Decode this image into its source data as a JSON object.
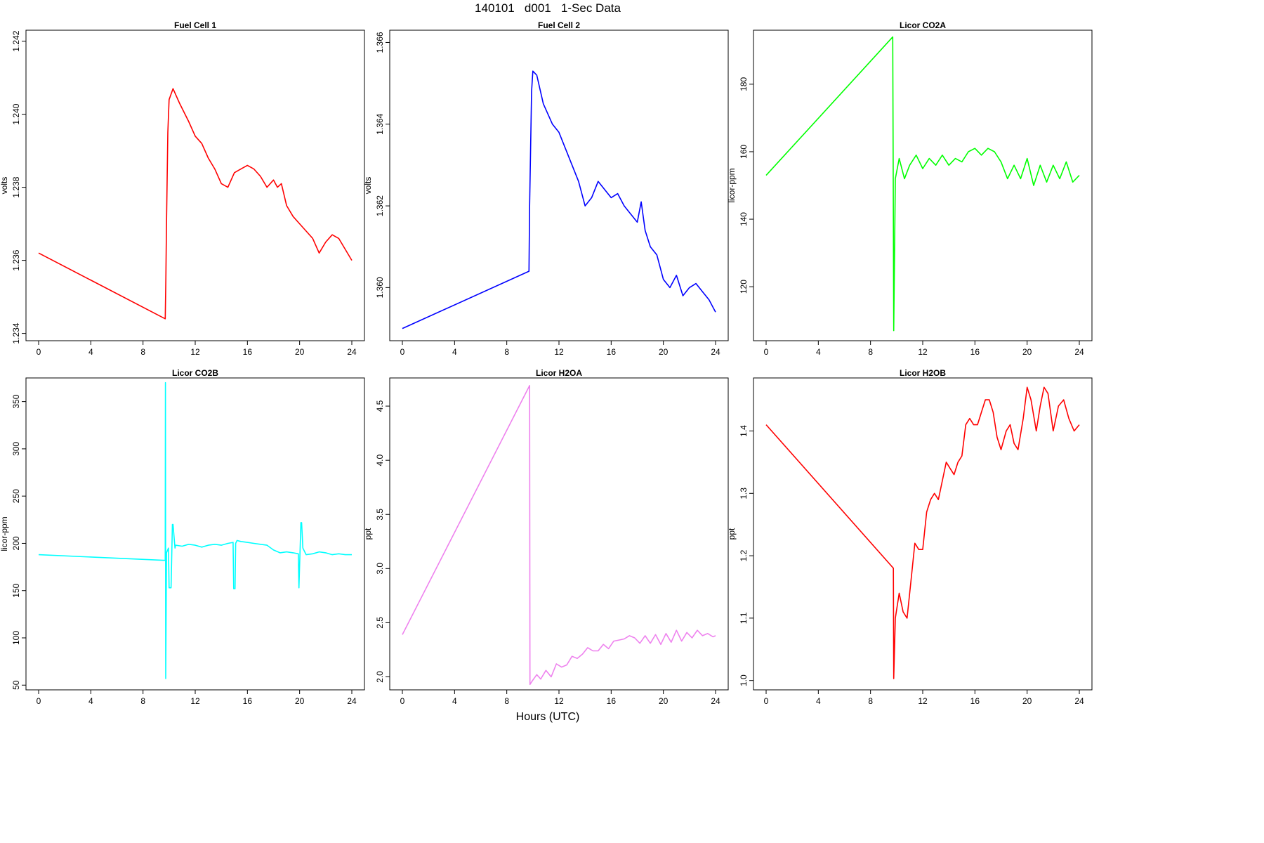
{
  "title": "140101   d001   1-Sec Data",
  "xaxis_title": "Hours (UTC)",
  "chart_data": [
    {
      "type": "line",
      "title": "Fuel Cell 1",
      "ylabel": "volts",
      "color": "#ff0000",
      "xlim": [
        0,
        24
      ],
      "ylim": [
        1.2338,
        1.2423
      ],
      "xticks": [
        0,
        4,
        8,
        12,
        16,
        20,
        24
      ],
      "yticks": [
        1.234,
        1.236,
        1.238,
        1.24,
        1.242
      ],
      "yticklabels": [
        "1.234",
        "1.236",
        "1.238",
        "1.240",
        "1.242"
      ],
      "series": [
        {
          "x": [
            0,
            9.7,
            9.75,
            9.8,
            9.9,
            10.0,
            10.3,
            10.8,
            11.5,
            12.0,
            12.5,
            13.0,
            13.5,
            14.0,
            14.5,
            15.0,
            15.5,
            16.0,
            16.5,
            17.0,
            17.5,
            18.0,
            18.3,
            18.6,
            19.0,
            19.5,
            20.0,
            20.5,
            21.0,
            21.5,
            22.0,
            22.5,
            23.0,
            23.5,
            24.0
          ],
          "y": [
            1.2362,
            1.2344,
            1.2355,
            1.237,
            1.2395,
            1.2404,
            1.2407,
            1.2403,
            1.2398,
            1.2394,
            1.2392,
            1.2388,
            1.2385,
            1.2381,
            1.238,
            1.2384,
            1.2385,
            1.2386,
            1.2385,
            1.2383,
            1.238,
            1.2382,
            1.238,
            1.2381,
            1.2375,
            1.2372,
            1.237,
            1.2368,
            1.2366,
            1.2362,
            1.2365,
            1.2367,
            1.2366,
            1.2363,
            1.236
          ]
        }
      ]
    },
    {
      "type": "line",
      "title": "Fuel Cell 2",
      "ylabel": "volts",
      "color": "#0000ff",
      "xlim": [
        0,
        24
      ],
      "ylim": [
        1.3587,
        1.3663
      ],
      "xticks": [
        0,
        4,
        8,
        12,
        16,
        20,
        24
      ],
      "yticks": [
        1.36,
        1.362,
        1.364,
        1.366
      ],
      "yticklabels": [
        "1.360",
        "1.362",
        "1.364",
        "1.366"
      ],
      "series": [
        {
          "x": [
            0,
            9.7,
            9.75,
            9.9,
            10.0,
            10.3,
            10.8,
            11.5,
            12.0,
            12.5,
            13.0,
            13.5,
            14.0,
            14.5,
            15.0,
            15.5,
            16.0,
            16.5,
            17.0,
            17.5,
            18.0,
            18.3,
            18.6,
            19.0,
            19.5,
            20.0,
            20.5,
            21.0,
            21.5,
            22.0,
            22.5,
            23.0,
            23.5,
            24.0
          ],
          "y": [
            1.359,
            1.3604,
            1.362,
            1.3648,
            1.3653,
            1.3652,
            1.3645,
            1.364,
            1.3638,
            1.3634,
            1.363,
            1.3626,
            1.362,
            1.3622,
            1.3626,
            1.3624,
            1.3622,
            1.3623,
            1.362,
            1.3618,
            1.3616,
            1.3621,
            1.3614,
            1.361,
            1.3608,
            1.3602,
            1.36,
            1.3603,
            1.3598,
            1.36,
            1.3601,
            1.3599,
            1.3597,
            1.3594
          ]
        }
      ]
    },
    {
      "type": "line",
      "title": "Licor CO2A",
      "ylabel": "licor-ppm",
      "color": "#00ff00",
      "xlim": [
        0,
        24
      ],
      "ylim": [
        104,
        196
      ],
      "xticks": [
        0,
        4,
        8,
        12,
        16,
        20,
        24
      ],
      "yticks": [
        120,
        140,
        160,
        180
      ],
      "yticklabels": [
        "120",
        "140",
        "160",
        "180"
      ],
      "series": [
        {
          "x": [
            0,
            9.7,
            9.75,
            9.78,
            9.9,
            10.2,
            10.6,
            11.0,
            11.5,
            12.0,
            12.5,
            13.0,
            13.5,
            14.0,
            14.5,
            15.0,
            15.5,
            16.0,
            16.5,
            17.0,
            17.5,
            18.0,
            18.5,
            19.0,
            19.5,
            20.0,
            20.5,
            21.0,
            21.5,
            22.0,
            22.5,
            23.0,
            23.5,
            24.0
          ],
          "y": [
            153,
            194,
            140,
            107,
            152,
            158,
            152,
            156,
            159,
            155,
            158,
            156,
            159,
            156,
            158,
            157,
            160,
            161,
            159,
            161,
            160,
            157,
            152,
            156,
            152,
            158,
            150,
            156,
            151,
            156,
            152,
            157,
            151,
            153
          ]
        }
      ]
    },
    {
      "type": "line",
      "title": "Licor CO2B",
      "ylabel": "licor-ppm",
      "color": "#00ffff",
      "xlim": [
        0,
        24
      ],
      "ylim": [
        45,
        375
      ],
      "xticks": [
        0,
        4,
        8,
        12,
        16,
        20,
        24
      ],
      "yticks": [
        50,
        100,
        150,
        200,
        250,
        300,
        350
      ],
      "yticklabels": [
        "50",
        "100",
        "150",
        "200",
        "250",
        "300",
        "350"
      ],
      "series": [
        {
          "x": [
            0,
            9.7,
            9.72,
            9.74,
            9.8,
            9.95,
            10.0,
            10.15,
            10.25,
            10.3,
            10.45,
            10.5,
            11.0,
            11.5,
            12.0,
            12.5,
            13.0,
            13.5,
            14.0,
            14.5,
            14.9,
            14.95,
            15.05,
            15.1,
            15.2,
            15.5,
            16.0,
            16.5,
            17.0,
            17.5,
            18.0,
            18.5,
            19.0,
            19.5,
            19.9,
            19.95,
            20.1,
            20.15,
            20.25,
            20.5,
            21.0,
            21.5,
            22.0,
            22.5,
            23.0,
            23.5,
            24.0
          ],
          "y": [
            188,
            182,
            370,
            57,
            190,
            195,
            153,
            153,
            220,
            220,
            195,
            198,
            197,
            199,
            198,
            196,
            198,
            199,
            198,
            200,
            201,
            152,
            152,
            200,
            203,
            202,
            201,
            200,
            199,
            198,
            193,
            190,
            191,
            190,
            189,
            153,
            222,
            222,
            195,
            188,
            189,
            191,
            190,
            188,
            189,
            188,
            188
          ]
        }
      ]
    },
    {
      "type": "line",
      "title": "Licor H2OA",
      "ylabel": "ppt",
      "color": "#ee82ee",
      "xlim": [
        0,
        24
      ],
      "ylim": [
        1.88,
        4.76
      ],
      "xticks": [
        0,
        4,
        8,
        12,
        16,
        20,
        24
      ],
      "yticks": [
        2.0,
        2.5,
        3.0,
        3.5,
        4.0,
        4.5
      ],
      "yticklabels": [
        "2.0",
        "2.5",
        "3.0",
        "3.5",
        "4.0",
        "4.5"
      ],
      "series": [
        {
          "x": [
            0,
            9.75,
            9.78,
            10.0,
            10.3,
            10.6,
            11.0,
            11.4,
            11.8,
            12.2,
            12.6,
            13.0,
            13.4,
            13.8,
            14.2,
            14.6,
            15.0,
            15.4,
            15.8,
            16.2,
            16.6,
            17.0,
            17.4,
            17.8,
            18.2,
            18.6,
            19.0,
            19.4,
            19.8,
            20.2,
            20.6,
            21.0,
            21.4,
            21.8,
            22.2,
            22.6,
            23.0,
            23.4,
            23.8,
            24.0
          ],
          "y": [
            2.39,
            4.69,
            1.93,
            1.97,
            2.02,
            1.98,
            2.06,
            2.0,
            2.12,
            2.09,
            2.11,
            2.19,
            2.17,
            2.21,
            2.27,
            2.24,
            2.24,
            2.3,
            2.26,
            2.33,
            2.34,
            2.35,
            2.38,
            2.36,
            2.31,
            2.38,
            2.31,
            2.39,
            2.3,
            2.4,
            2.32,
            2.43,
            2.33,
            2.41,
            2.36,
            2.43,
            2.38,
            2.4,
            2.37,
            2.38
          ]
        }
      ]
    },
    {
      "type": "line",
      "title": "Licor H2OB",
      "ylabel": "ppt",
      "color": "#ff0000",
      "xlim": [
        0,
        24
      ],
      "ylim": [
        0.985,
        1.485
      ],
      "xticks": [
        0,
        4,
        8,
        12,
        16,
        20,
        24
      ],
      "yticks": [
        1.0,
        1.1,
        1.2,
        1.3,
        1.4
      ],
      "yticklabels": [
        "1.0",
        "1.1",
        "1.2",
        "1.3",
        "1.4"
      ],
      "series": [
        {
          "x": [
            0,
            9.75,
            9.78,
            9.9,
            10.2,
            10.5,
            10.8,
            11.1,
            11.4,
            11.7,
            12.0,
            12.3,
            12.6,
            12.9,
            13.2,
            13.5,
            13.8,
            14.1,
            14.4,
            14.7,
            15.0,
            15.3,
            15.6,
            15.9,
            16.2,
            16.5,
            16.8,
            17.1,
            17.4,
            17.7,
            18.0,
            18.4,
            18.7,
            19.0,
            19.3,
            19.7,
            20.0,
            20.3,
            20.7,
            21.0,
            21.3,
            21.6,
            22.0,
            22.4,
            22.8,
            23.2,
            23.6,
            24.0
          ],
          "y": [
            1.41,
            1.18,
            1.003,
            1.1,
            1.14,
            1.11,
            1.1,
            1.16,
            1.22,
            1.21,
            1.21,
            1.27,
            1.29,
            1.3,
            1.29,
            1.32,
            1.35,
            1.34,
            1.33,
            1.35,
            1.36,
            1.41,
            1.42,
            1.41,
            1.41,
            1.43,
            1.45,
            1.45,
            1.43,
            1.39,
            1.37,
            1.4,
            1.41,
            1.38,
            1.37,
            1.42,
            1.47,
            1.45,
            1.4,
            1.44,
            1.47,
            1.46,
            1.4,
            1.44,
            1.45,
            1.42,
            1.4,
            1.41
          ]
        }
      ]
    }
  ]
}
